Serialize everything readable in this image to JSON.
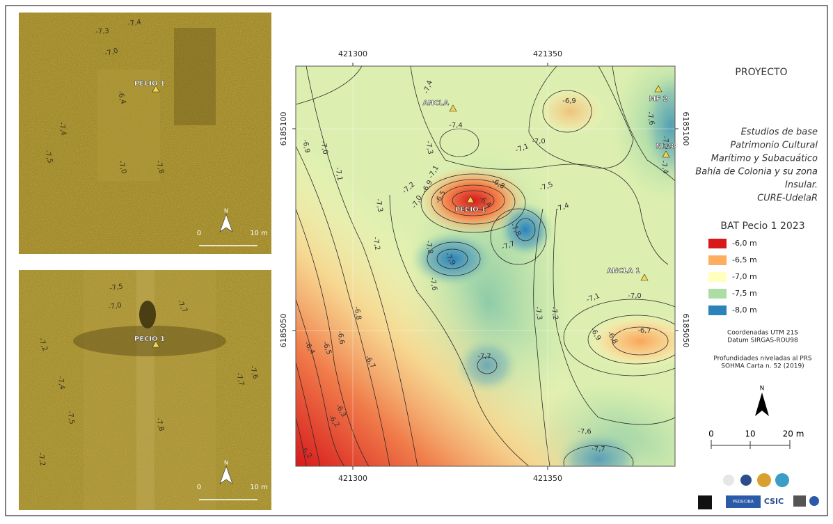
{
  "sonar_top": {
    "labels": [
      "-7,4",
      "-7,3",
      "-7,0",
      "PECIO 1",
      "-6,4",
      "-7,4",
      "-7,5",
      "-7,0",
      "-7,8"
    ],
    "scale": [
      "0",
      "10 m"
    ],
    "north": "N"
  },
  "sonar_bottom": {
    "labels": [
      "-7,5",
      "-7,0",
      "-7,7",
      "PECIO 1",
      "-7,2",
      "-7,4",
      "-7,5",
      "-7,8",
      "-7,7",
      "-7,6",
      "-7,2"
    ],
    "scale": [
      "0",
      "10 m"
    ],
    "north": "N"
  },
  "map": {
    "x_ticks_top": [
      "421300",
      "421350"
    ],
    "x_ticks_bottom": [
      "421300",
      "421350"
    ],
    "y_ticks_left": [
      "6185100",
      "6185050"
    ],
    "y_ticks_right": [
      "6185100",
      "6185050"
    ],
    "markers": [
      "ANCLA",
      "MF 2",
      "NI 28",
      "PECIO 1",
      "ANCLA 1"
    ],
    "marker_color": "#f5d54a",
    "contour_labels": [
      "-7,4",
      "-6,9",
      "-7,6",
      "-7,5",
      "-7,4",
      "-7,0",
      "-7,3",
      "-7,1",
      "-7,0",
      "-6,9",
      "-7,1",
      "-7,4",
      "-7,1",
      "-7,2",
      "-6,9",
      "-6,8",
      "-7,0",
      "-6,5",
      "-6,4",
      "-7,3",
      "-7,5",
      "-7,4",
      "-7,8",
      "-7,7",
      "-7,2",
      "-7,8",
      "-7,9",
      "-7,6",
      "-7,3",
      "-7,2",
      "-7,1",
      "-7,0",
      "-6,8",
      "-6,7",
      "-6,9",
      "-6,8",
      "-6,6",
      "-6,5",
      "-6,4",
      "-6,7",
      "-7,7",
      "-6,3",
      "-6,2",
      "-7,6",
      "-7,7",
      "-6,2"
    ]
  },
  "panel": {
    "project": "PROYECTO",
    "description": [
      "Estudios de base",
      "Patrimonio Cultural",
      "Marítimo y Subacuático",
      "Bahía de Colonia y su zona",
      "Insular.",
      "CURE-UdelaR"
    ],
    "legend_title": "BAT Pecio 1 2023",
    "legend": [
      {
        "label": "-6,0 m",
        "color": "#d7191c"
      },
      {
        "label": "-6,5 m",
        "color": "#fdae61"
      },
      {
        "label": "-7,0 m",
        "color": "#ffffbf"
      },
      {
        "label": "-7,5 m",
        "color": "#abdda4"
      },
      {
        "label": "-8,0 m",
        "color": "#2b83ba"
      }
    ],
    "notes": [
      "Coordenadas UTM 21S",
      "Datum SIRGAS-ROU98",
      "Profundidades niveladas al PRS",
      "SOHMA Carta n. 52 (2019)"
    ],
    "north": "N",
    "scale": [
      "0",
      "10",
      "20 m"
    ],
    "logos": [
      "PEDECIBA",
      "CSIC"
    ]
  }
}
